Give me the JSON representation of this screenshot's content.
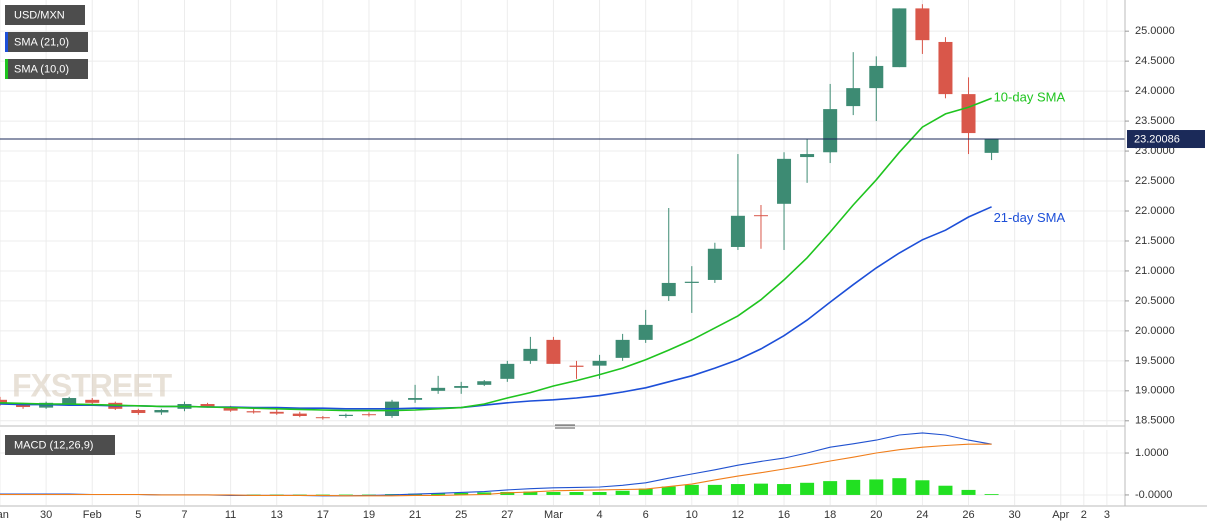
{
  "chart_data": [
    {
      "type": "candlestick",
      "title": "USD/MXN",
      "watermark": "FXSTREET",
      "categories": [
        "Jan",
        null,
        "30",
        null,
        "Feb",
        null,
        "5",
        null,
        "7",
        null,
        "11",
        null,
        "13",
        null,
        "17",
        null,
        "19",
        null,
        "21",
        null,
        "25",
        null,
        "27",
        null,
        "Mar",
        null,
        "4",
        null,
        "6",
        null,
        "10",
        null,
        "12",
        null,
        "16",
        null,
        "18",
        null,
        "20",
        null,
        "24",
        null,
        "26",
        null,
        "30",
        null,
        "Apr",
        "2",
        "3"
      ],
      "open": [
        18.85,
        18.78,
        18.72,
        18.78,
        18.85,
        18.8,
        18.68,
        18.64,
        18.7,
        18.78,
        18.72,
        18.66,
        18.65,
        18.62,
        18.56,
        18.58,
        18.61,
        18.58,
        18.85,
        19.0,
        19.05,
        19.1,
        19.2,
        19.5,
        19.85,
        19.42,
        19.42,
        19.55,
        19.85,
        20.58,
        20.8,
        20.85,
        21.4,
        21.93,
        22.12,
        22.9,
        22.98,
        23.75,
        24.05,
        24.4,
        25.38,
        24.82,
        23.95,
        22.97,
        null,
        null,
        null,
        null,
        null
      ],
      "high": [
        18.9,
        18.8,
        18.82,
        18.9,
        18.88,
        18.82,
        18.7,
        18.7,
        18.82,
        18.8,
        18.75,
        18.7,
        18.7,
        18.65,
        18.58,
        18.62,
        18.64,
        18.85,
        19.1,
        19.25,
        19.15,
        19.18,
        19.5,
        19.9,
        19.9,
        19.5,
        19.6,
        19.95,
        20.35,
        22.05,
        21.08,
        21.47,
        22.95,
        22.1,
        22.98,
        23.2,
        24.12,
        24.65,
        24.58,
        25.38,
        25.45,
        24.9,
        24.23,
        23.2,
        null,
        null,
        null,
        null,
        null
      ],
      "low": [
        18.75,
        18.7,
        18.7,
        18.76,
        18.78,
        18.68,
        18.6,
        18.6,
        18.66,
        18.72,
        18.65,
        18.62,
        18.6,
        18.56,
        18.52,
        18.55,
        18.57,
        18.55,
        18.8,
        18.95,
        18.95,
        19.08,
        19.15,
        19.45,
        19.45,
        19.2,
        19.2,
        19.5,
        19.8,
        20.5,
        20.3,
        20.8,
        21.35,
        21.37,
        21.35,
        22.47,
        22.8,
        23.6,
        23.5,
        24.4,
        24.62,
        23.88,
        22.95,
        22.85,
        null,
        null,
        null,
        null,
        null
      ],
      "close": [
        18.78,
        18.73,
        18.8,
        18.88,
        18.8,
        18.7,
        18.63,
        18.68,
        18.78,
        18.74,
        18.67,
        18.64,
        18.62,
        18.58,
        18.55,
        18.6,
        18.6,
        18.82,
        18.88,
        19.05,
        19.08,
        19.16,
        19.45,
        19.7,
        19.45,
        19.4,
        19.5,
        19.85,
        20.1,
        20.8,
        20.82,
        21.37,
        21.92,
        21.92,
        22.87,
        22.95,
        23.7,
        24.05,
        24.42,
        25.38,
        24.85,
        23.95,
        23.3,
        23.2,
        null,
        null,
        null,
        null,
        null
      ],
      "up_color": "#3d8b73",
      "down_color": "#d9574a",
      "overlays": [
        {
          "name": "SMA (21,0)",
          "label": "21-day SMA",
          "color": "#1d4fd8",
          "values": [
            18.78,
            18.77,
            18.77,
            18.76,
            18.76,
            18.75,
            18.75,
            18.74,
            18.74,
            18.73,
            18.73,
            18.72,
            18.72,
            18.71,
            18.71,
            18.7,
            18.7,
            18.7,
            18.71,
            18.71,
            18.72,
            18.76,
            18.8,
            18.83,
            18.85,
            18.88,
            18.92,
            18.98,
            19.05,
            19.15,
            19.25,
            19.38,
            19.52,
            19.7,
            19.92,
            20.18,
            20.48,
            20.77,
            21.05,
            21.3,
            21.52,
            21.68,
            21.9,
            22.07,
            null,
            null,
            null,
            null,
            null
          ]
        },
        {
          "name": "SMA (10,0)",
          "label": "10-day SMA",
          "color": "#1fc41f",
          "values": [
            18.8,
            18.79,
            18.78,
            18.78,
            18.77,
            18.76,
            18.75,
            18.74,
            18.74,
            18.73,
            18.72,
            18.71,
            18.7,
            18.69,
            18.68,
            18.67,
            18.67,
            18.67,
            18.68,
            18.7,
            18.72,
            18.78,
            18.88,
            18.97,
            19.08,
            19.17,
            19.27,
            19.38,
            19.52,
            19.68,
            19.85,
            20.05,
            20.25,
            20.52,
            20.85,
            21.22,
            21.65,
            22.1,
            22.52,
            22.98,
            23.4,
            23.62,
            23.73,
            23.88,
            null,
            null,
            null,
            null,
            null
          ]
        }
      ],
      "last_price": 23.20086,
      "last_price_color": "#1b2a59",
      "ylim": [
        18.43,
        25.52
      ],
      "yticks": [
        {
          "value": 18.5,
          "label": "18.5000"
        },
        {
          "value": 19,
          "label": "19.0000"
        },
        {
          "value": 19.5,
          "label": "19.5000"
        },
        {
          "value": 20,
          "label": "20.0000"
        },
        {
          "value": 20.5,
          "label": "20.5000"
        },
        {
          "value": 21,
          "label": "21.0000"
        },
        {
          "value": 21.5,
          "label": "21.5000"
        },
        {
          "value": 22,
          "label": "22.0000"
        },
        {
          "value": 22.5,
          "label": "22.5000"
        },
        {
          "value": 23,
          "label": "23.0000"
        },
        {
          "value": 23.5,
          "label": "23.5000"
        },
        {
          "value": 24,
          "label": "24.0000"
        },
        {
          "value": 24.5,
          "label": "24.5000"
        },
        {
          "value": 25,
          "label": "25.0000"
        }
      ],
      "grid": true
    },
    {
      "type": "macd",
      "title": "MACD (12,26,9)",
      "series": [
        {
          "name": "MACD",
          "kind": "line",
          "color": "#2152d0",
          "values": [
            0.02,
            0.02,
            0.02,
            0.02,
            0.01,
            0.01,
            0.01,
            0,
            0,
            0,
            -0.01,
            -0.01,
            -0.01,
            -0.01,
            -0.02,
            -0.02,
            -0.01,
            0,
            0.02,
            0.04,
            0.06,
            0.08,
            0.12,
            0.15,
            0.17,
            0.18,
            0.19,
            0.23,
            0.29,
            0.4,
            0.5,
            0.6,
            0.71,
            0.8,
            0.88,
            1.0,
            1.14,
            1.22,
            1.31,
            1.43,
            1.48,
            1.43,
            1.31,
            1.21,
            null,
            null,
            null,
            null,
            null
          ]
        },
        {
          "name": "Signal",
          "kind": "line",
          "color": "#f07e1b",
          "values": [
            0.01,
            0.01,
            0.01,
            0.01,
            0.01,
            0.01,
            0.01,
            0,
            0,
            0,
            0,
            -0.01,
            -0.01,
            -0.01,
            -0.01,
            -0.02,
            -0.02,
            -0.02,
            -0.01,
            -0.01,
            0,
            0.01,
            0.05,
            0.07,
            0.1,
            0.11,
            0.12,
            0.13,
            0.14,
            0.2,
            0.26,
            0.36,
            0.45,
            0.53,
            0.62,
            0.71,
            0.81,
            0.9,
            1.0,
            1.08,
            1.14,
            1.18,
            1.21,
            1.21,
            null,
            null,
            null,
            null,
            null
          ]
        },
        {
          "name": "Histogram",
          "kind": "bar",
          "color": "#22e022",
          "values": [
            0.02,
            0.02,
            0.02,
            0.02,
            0.02,
            0.01,
            0.01,
            0.01,
            0.01,
            0.01,
            0.01,
            0.01,
            0.01,
            0.01,
            0.01,
            0.01,
            0.01,
            0.02,
            0.03,
            0.04,
            0.05,
            0.06,
            0.07,
            0.08,
            0.07,
            0.07,
            0.07,
            0.1,
            0.15,
            0.2,
            0.24,
            0.24,
            0.26,
            0.27,
            0.26,
            0.29,
            0.33,
            0.36,
            0.37,
            0.4,
            0.35,
            0.22,
            0.12,
            0.02,
            null,
            null,
            null,
            null,
            null
          ]
        }
      ],
      "ylim": [
        -0.24,
        1.55
      ],
      "yticks": [
        {
          "value": 0,
          "label": "-0.0000"
        },
        {
          "value": 1,
          "label": "1.0000"
        }
      ]
    }
  ]
}
